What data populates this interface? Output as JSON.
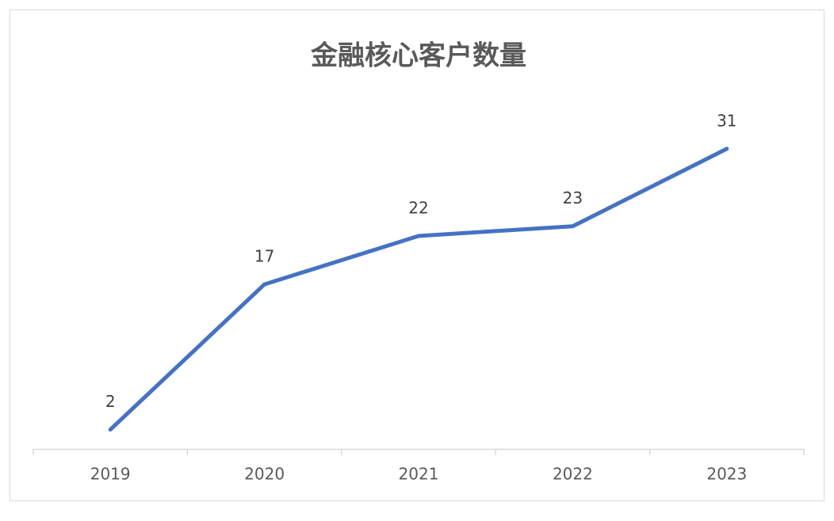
{
  "chart_data": {
    "type": "line",
    "title": "金融核心客户数量",
    "categories": [
      "2019",
      "2020",
      "2021",
      "2022",
      "2023"
    ],
    "series": [
      {
        "color": "#4472c4",
        "values": [
          2,
          17,
          22,
          23,
          31
        ]
      }
    ],
    "ylim": [
      0,
      35
    ]
  }
}
